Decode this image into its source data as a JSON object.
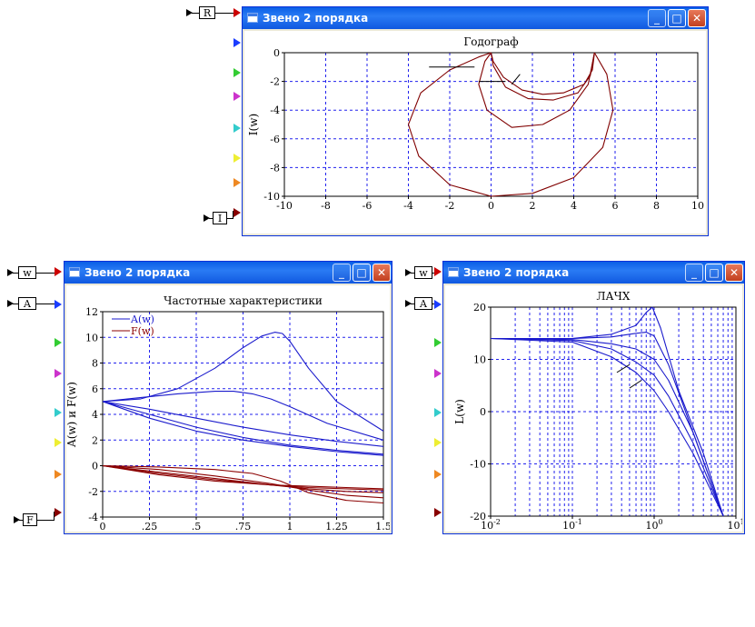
{
  "windows": [
    {
      "title": "Звено 2 порядка"
    },
    {
      "title": "Звено 2 порядка"
    },
    {
      "title": "Звено 2 порядка"
    }
  ],
  "window_buttons": {
    "minimize": "_",
    "maximize": "□",
    "close": "✕"
  },
  "ports": {
    "R": "R",
    "I": "I",
    "w1": "w",
    "A1": "A",
    "F": "F",
    "w2": "w",
    "A2": "A"
  },
  "port_colors": [
    "#cc0000",
    "#1a3cff",
    "#33cc33",
    "#cc33cc",
    "#33cccc",
    "#eeee33",
    "#ee8822",
    "#880000"
  ],
  "chart_data": [
    {
      "type": "line",
      "title": "Годограф",
      "xlabel": "",
      "ylabel": "I(w)",
      "xlim": [
        -10,
        10
      ],
      "ylim": [
        -10,
        0
      ],
      "xticks": [
        "-10",
        "-8",
        "-6",
        "-4",
        "-2",
        "0",
        "2",
        "4",
        "6",
        "8",
        "10"
      ],
      "yticks": [
        "0",
        "-2",
        "-4",
        "-6",
        "-8",
        "-10"
      ],
      "grid": true,
      "series": [
        {
          "color": "#800000",
          "x": [
            5,
            4.9,
            4.5,
            3.5,
            2.5,
            1.5,
            0.6,
            0.1,
            0
          ],
          "y": [
            0,
            -1.2,
            -2.2,
            -2.8,
            -2.9,
            -2.6,
            -1.7,
            -0.6,
            0
          ]
        },
        {
          "color": "#800000",
          "x": [
            5,
            4.8,
            4.2,
            3.0,
            1.8,
            0.7,
            0.1,
            0
          ],
          "y": [
            0,
            -1.6,
            -2.8,
            -3.3,
            -3.2,
            -2.4,
            -0.9,
            0
          ]
        },
        {
          "color": "#800000",
          "x": [
            5,
            4.7,
            3.8,
            2.5,
            1.0,
            -0.2,
            -0.6,
            -0.3,
            0
          ],
          "y": [
            0,
            -2.2,
            -4.0,
            -5.0,
            -5.2,
            -4.0,
            -2.2,
            -0.6,
            0
          ]
        },
        {
          "color": "#800000",
          "x": [
            5,
            5.6,
            5.9,
            5.4,
            4.0,
            2.0,
            0,
            -2.0,
            -3.5,
            -4.0,
            -3.4,
            -2.0,
            -0.6,
            0
          ],
          "y": [
            0,
            -1.5,
            -4.0,
            -6.6,
            -8.7,
            -9.8,
            -10.0,
            -9.2,
            -7.2,
            -5.0,
            -2.8,
            -1.2,
            -0.3,
            0
          ]
        }
      ],
      "annotation_lines": [
        {
          "x": [
            -3,
            -0.8
          ],
          "y": [
            -1.0,
            -1.0
          ]
        },
        {
          "x": [
            -0.6,
            0.7
          ],
          "y": [
            -2.0,
            -2.0
          ]
        },
        {
          "x": [
            1.0,
            1.4
          ],
          "y": [
            -2.2,
            -1.5
          ]
        }
      ]
    },
    {
      "type": "line",
      "title": "Частотные характеристики",
      "xlabel": "",
      "ylabel": "A(w) и F(w)",
      "xlim": [
        0,
        1.5
      ],
      "ylim": [
        -4,
        12
      ],
      "xticks": [
        "0",
        ".25",
        ".5",
        ".75",
        "1",
        "1.25",
        "1.5"
      ],
      "yticks": [
        "12",
        "10",
        "8",
        "6",
        "4",
        "2",
        "0",
        "-2",
        "-4"
      ],
      "grid": true,
      "legend": {
        "position": "top-left",
        "entries": [
          {
            "name": "A(w)",
            "color": "#1a1acc"
          },
          {
            "name": "F(w)",
            "color": "#8b0000"
          }
        ]
      },
      "series": [
        {
          "name": "A(w)",
          "color": "#1a1acc",
          "x": [
            0,
            0.2,
            0.4,
            0.6,
            0.75,
            0.85,
            0.92,
            0.96,
            1.0,
            1.1,
            1.25,
            1.5
          ],
          "y": [
            5,
            5.2,
            6.0,
            7.6,
            9.2,
            10.1,
            10.4,
            10.3,
            9.7,
            7.6,
            5.0,
            2.7
          ]
        },
        {
          "name": "A(w)",
          "color": "#1a1acc",
          "x": [
            0,
            0.2,
            0.4,
            0.6,
            0.7,
            0.8,
            0.9,
            1.0,
            1.2,
            1.5
          ],
          "y": [
            5,
            5.3,
            5.6,
            5.8,
            5.8,
            5.6,
            5.2,
            4.6,
            3.3,
            2.0
          ]
        },
        {
          "name": "A(w)",
          "color": "#1a1acc",
          "x": [
            0,
            0.25,
            0.5,
            0.75,
            1.0,
            1.25,
            1.5
          ],
          "y": [
            5,
            4.4,
            3.7,
            3.0,
            2.4,
            1.9,
            1.5
          ]
        },
        {
          "name": "A(w)",
          "color": "#1a1acc",
          "x": [
            0,
            0.25,
            0.5,
            0.75,
            1.0,
            1.25,
            1.5
          ],
          "y": [
            5,
            4.0,
            3.0,
            2.2,
            1.6,
            1.2,
            0.9
          ]
        },
        {
          "name": "A(w)",
          "color": "#1a1acc",
          "x": [
            0,
            0.25,
            0.5,
            0.75,
            1.0,
            1.25,
            1.5
          ],
          "y": [
            5,
            3.7,
            2.7,
            2.0,
            1.5,
            1.1,
            0.8
          ]
        },
        {
          "name": "F(w)",
          "color": "#8b0000",
          "x": [
            0,
            0.3,
            0.6,
            0.8,
            0.95,
            1.1,
            1.3,
            1.5
          ],
          "y": [
            0,
            -0.1,
            -0.3,
            -0.6,
            -1.2,
            -2.1,
            -2.7,
            -2.9
          ]
        },
        {
          "name": "F(w)",
          "color": "#8b0000",
          "x": [
            0,
            0.3,
            0.6,
            0.9,
            1.1,
            1.3,
            1.5
          ],
          "y": [
            0,
            -0.3,
            -0.8,
            -1.4,
            -1.9,
            -2.3,
            -2.5
          ]
        },
        {
          "name": "F(w)",
          "color": "#8b0000",
          "x": [
            0,
            0.3,
            0.6,
            0.9,
            1.1,
            1.3,
            1.5
          ],
          "y": [
            0,
            -0.5,
            -1.0,
            -1.5,
            -1.8,
            -2.0,
            -2.1
          ]
        },
        {
          "name": "F(w)",
          "color": "#8b0000",
          "x": [
            0,
            0.3,
            0.6,
            0.9,
            1.1,
            1.3,
            1.5
          ],
          "y": [
            0,
            -0.6,
            -1.1,
            -1.5,
            -1.7,
            -1.8,
            -1.9
          ]
        },
        {
          "name": "F(w)",
          "color": "#8b0000",
          "x": [
            0,
            0.3,
            0.6,
            0.9,
            1.1,
            1.3,
            1.5
          ],
          "y": [
            0,
            -0.7,
            -1.2,
            -1.5,
            -1.6,
            -1.7,
            -1.8
          ]
        }
      ]
    },
    {
      "type": "line",
      "title": "ЛАЧХ",
      "xlabel": "",
      "ylabel": "L(w)",
      "xscale": "log",
      "xlim": [
        0.01,
        10
      ],
      "ylim": [
        -20,
        20
      ],
      "xticks": [
        "10^-2",
        "10^-1",
        "10^0",
        "10^1"
      ],
      "yticks": [
        "20",
        "10",
        "0",
        "-10",
        "-20"
      ],
      "grid": true,
      "series": [
        {
          "color": "#1a1acc",
          "x": [
            0.01,
            0.1,
            0.3,
            0.6,
            0.8,
            0.95,
            1.2,
            2,
            4,
            7
          ],
          "y": [
            14,
            14,
            14.8,
            16.5,
            19,
            20,
            16,
            4,
            -8,
            -20
          ]
        },
        {
          "color": "#1a1acc",
          "x": [
            0.01,
            0.1,
            0.3,
            0.6,
            0.8,
            1.0,
            1.5,
            3,
            7
          ],
          "y": [
            14,
            14,
            14.3,
            15,
            15.2,
            14.5,
            9,
            -4,
            -20
          ]
        },
        {
          "color": "#1a1acc",
          "x": [
            0.01,
            0.1,
            0.3,
            0.6,
            1.0,
            1.5,
            3,
            7
          ],
          "y": [
            14,
            13.8,
            13,
            12,
            10,
            6,
            -4,
            -20
          ]
        },
        {
          "color": "#1a1acc",
          "x": [
            0.01,
            0.1,
            0.3,
            0.6,
            1.0,
            1.5,
            3,
            7
          ],
          "y": [
            14,
            13.6,
            12,
            9.5,
            7,
            3,
            -6,
            -20
          ]
        },
        {
          "color": "#1a1acc",
          "x": [
            0.01,
            0.1,
            0.3,
            0.6,
            1.0,
            1.5,
            3,
            7
          ],
          "y": [
            14,
            13.3,
            10.5,
            7.5,
            4,
            0,
            -8,
            -20
          ]
        }
      ],
      "annotation_lines": [
        {
          "x": [
            0.35,
            0.5
          ],
          "y": [
            7.5,
            9
          ]
        },
        {
          "x": [
            0.5,
            0.7
          ],
          "y": [
            4.5,
            6
          ]
        }
      ]
    }
  ]
}
